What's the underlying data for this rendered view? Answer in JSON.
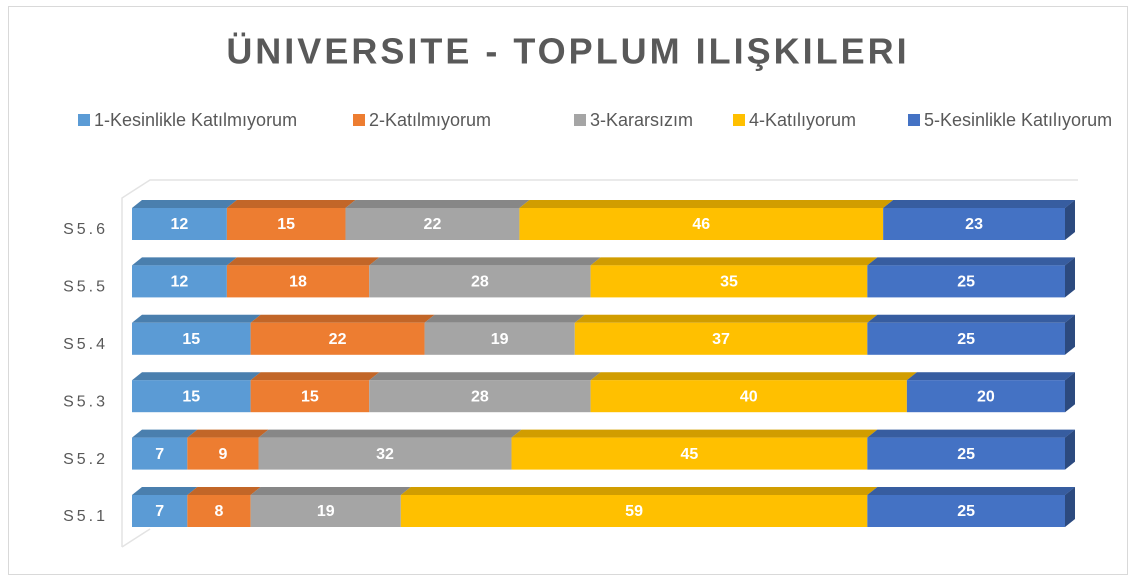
{
  "chart_data": {
    "type": "stacked-bar-horizontal",
    "title": "ÜNIVERSITE - TOPLUM ILIŞKILERI",
    "categories": [
      "S5.1",
      "S5.2",
      "S5.3",
      "S5.4",
      "S5.5",
      "S5.6"
    ],
    "series": [
      {
        "name": "1-Kesinlikle Katılmıyorum",
        "color": "#5b9bd5",
        "values": [
          7,
          7,
          15,
          15,
          12,
          12
        ]
      },
      {
        "name": "2-Katılmıyorum",
        "color": "#ed7d31",
        "values": [
          8,
          9,
          15,
          22,
          18,
          15
        ]
      },
      {
        "name": "3-Kararsızım",
        "color": "#a5a5a5",
        "values": [
          19,
          32,
          28,
          19,
          28,
          22
        ]
      },
      {
        "name": "4-Katılıyorum",
        "color": "#ffc000",
        "values": [
          59,
          45,
          40,
          37,
          35,
          46
        ]
      },
      {
        "name": "5-Kesinlikle Katılıyorum",
        "color": "#4472c4",
        "values": [
          25,
          25,
          20,
          25,
          25,
          23
        ]
      }
    ],
    "legend": "top"
  }
}
